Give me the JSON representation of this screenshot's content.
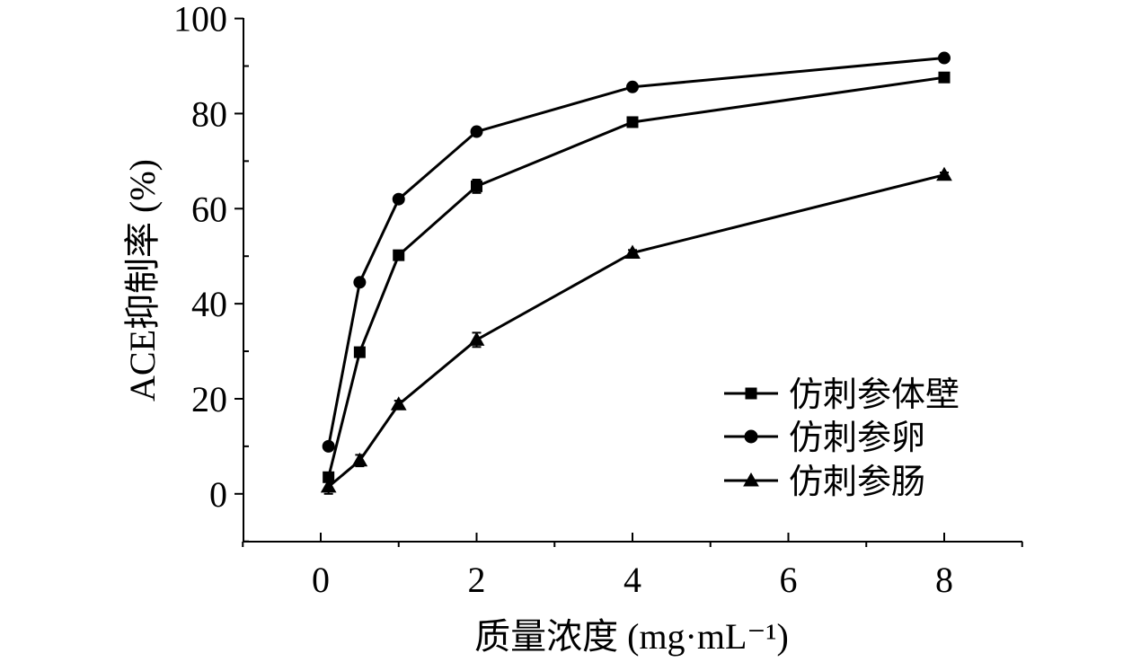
{
  "chart_data": {
    "type": "line",
    "xlabel": "质量浓度 (mg·mL⁻¹)",
    "ylabel": "ACE抑制率 (%)",
    "x_ticks": [
      "0",
      "2",
      "4",
      "6",
      "8"
    ],
    "y_ticks": [
      "0",
      "20",
      "40",
      "60",
      "80",
      "100"
    ],
    "ylim": [
      0,
      100
    ],
    "y_axis_min": -10,
    "x_positions": [
      0.1,
      0.5,
      1,
      2,
      4,
      8
    ],
    "legend_position": "bottom-right",
    "grid": false,
    "series": [
      {
        "name": "仿刺参体壁",
        "marker": "square",
        "values": [
          3.5,
          29.8,
          50.2,
          64.7,
          78.2,
          87.6
        ],
        "errors": [
          0.5,
          0.8,
          0.9,
          1.4,
          0.6,
          0.6
        ]
      },
      {
        "name": "仿刺参卵",
        "marker": "circle",
        "values": [
          10.0,
          44.5,
          62.0,
          76.2,
          85.6,
          91.7
        ],
        "errors": [
          0.4,
          0.6,
          0.5,
          0.6,
          0.5,
          0.5
        ]
      },
      {
        "name": "仿刺参肠",
        "marker": "triangle",
        "values": [
          1.5,
          7.0,
          18.8,
          32.4,
          50.7,
          67.1
        ],
        "errors": [
          1.5,
          1.2,
          0.8,
          1.5,
          0.6,
          0.5
        ]
      }
    ]
  }
}
